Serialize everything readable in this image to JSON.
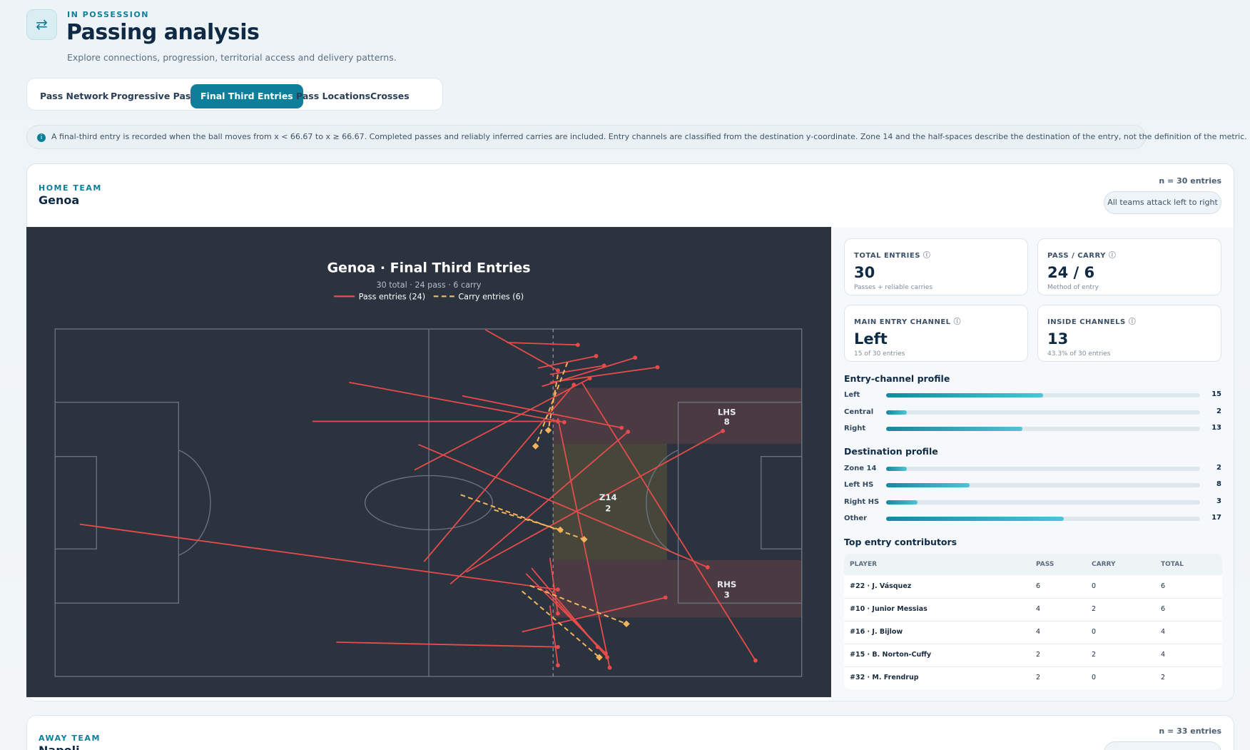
{
  "header": {
    "eyebrow": "IN POSSESSION",
    "title": "Passing analysis",
    "subtitle": "Explore connections, progression, territorial access and delivery patterns."
  },
  "tabs": [
    "Pass Network",
    "Progressive Passes",
    "Final Third Entries",
    "Pass Locations",
    "Crosses"
  ],
  "active_tab": 2,
  "info": "A final-third entry is recorded when the ball moves from x < 66.67 to x ≥ 66.67. Completed passes and reliably inferred carries are included. Entry channels are classified from the destination y-coordinate. Zone 14 and the half-spaces describe the destination of the entry, not the definition of the metric.",
  "home": {
    "label": "HOME TEAM",
    "team": "Genoa",
    "count_label": "n = 30 entries",
    "direction": "All teams attack left to right",
    "chart": {
      "title": "Genoa · Final Third Entries",
      "subtitle": "30 total · 24 pass · 6 carry",
      "legend": [
        "Pass entries (24)",
        "Carry entries (6)"
      ],
      "zones": [
        {
          "name": "LHS",
          "value": 8
        },
        {
          "name": "Z14",
          "value": 2
        },
        {
          "name": "RHS",
          "value": 3
        }
      ]
    },
    "stats": [
      {
        "label": "TOTAL ENTRIES",
        "value": 30,
        "note": "Passes + reliable carries"
      },
      {
        "label": "PASS / CARRY",
        "value": "24 / 6",
        "note": "Method of entry"
      },
      {
        "label": "MAIN ENTRY CHANNEL",
        "value": "Left",
        "note": "15 of 30 entries"
      },
      {
        "label": "INSIDE CHANNELS",
        "value": 13,
        "note": "43.3% of 30 entries"
      }
    ],
    "channel_profile": {
      "title": "Entry-channel profile",
      "rows": [
        {
          "name": "Left",
          "value": 15
        },
        {
          "name": "Central",
          "value": 2
        },
        {
          "name": "Right",
          "value": 13
        }
      ]
    },
    "destination_profile": {
      "title": "Destination profile",
      "rows": [
        {
          "name": "Zone 14",
          "value": 2
        },
        {
          "name": "Left HS",
          "value": 8
        },
        {
          "name": "Right HS",
          "value": 3
        },
        {
          "name": "Other",
          "value": 17
        }
      ]
    },
    "contributors": {
      "title": "Top entry contributors",
      "columns": [
        "PLAYER",
        "PASS",
        "CARRY",
        "TOTAL"
      ],
      "rows": [
        [
          "#22 · J. Vásquez",
          6,
          0,
          6
        ],
        [
          "#10 · Junior Messias",
          4,
          2,
          6
        ],
        [
          "#16 · J. Bijlow",
          4,
          0,
          4
        ],
        [
          "#15 · B. Norton-Cuffy",
          2,
          2,
          4
        ],
        [
          "#32 · M. Frendrup",
          2,
          0,
          2
        ]
      ]
    }
  },
  "away": {
    "label": "AWAY TEAM",
    "team": "Napoli",
    "count_label": "n = 33 entries"
  }
}
